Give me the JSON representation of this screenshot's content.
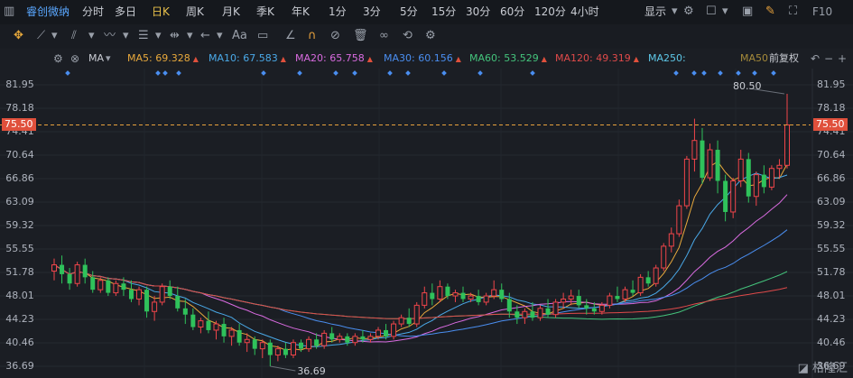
{
  "toolbar": {
    "stock_name": "睿创微纳",
    "periods": [
      "分时",
      "多日",
      "日K",
      "周K",
      "月K",
      "季K",
      "年K",
      "1分",
      "3分",
      "5分",
      "15分",
      "30分",
      "60分",
      "120分",
      "4小时"
    ],
    "active_period": "日K",
    "display_label": "显示",
    "f10_label": "F10"
  },
  "ma_bar": {
    "prefix": "MA",
    "items": [
      {
        "label": "MA5: 69.328",
        "color": "#e8a93c"
      },
      {
        "label": "MA10: 67.583",
        "color": "#4aa9e8"
      },
      {
        "label": "MA20: 65.758",
        "color": "#d96be0"
      },
      {
        "label": "MA30: 60.156",
        "color": "#4a8ef0"
      },
      {
        "label": "MA60: 53.529",
        "color": "#44c47c"
      },
      {
        "label": "MA120: 49.319",
        "color": "#e04a4a"
      },
      {
        "label": "MA250:",
        "color": "#5ec8e8"
      },
      {
        "label": "MA50",
        "color": "#a58a3a"
      }
    ],
    "adjust_label": "前复权"
  },
  "chart_data": {
    "type": "candlestick",
    "y_ticks": [
      "81.95",
      "78.18",
      "74.41",
      "70.64",
      "66.86",
      "63.09",
      "59.32",
      "55.55",
      "51.78",
      "48.01",
      "44.23",
      "40.46",
      "36.69"
    ],
    "ylim": [
      36.69,
      81.95
    ],
    "current_price": "75.50",
    "high_label": "80.50",
    "low_label": "36.69",
    "candles": [
      {
        "o": 52.0,
        "h": 54.0,
        "c": 53.0,
        "l": 50.5
      },
      {
        "o": 53.0,
        "h": 54.5,
        "c": 51.5,
        "l": 50.0
      },
      {
        "o": 51.5,
        "h": 52.5,
        "c": 50.0,
        "l": 49.0
      },
      {
        "o": 50.0,
        "h": 53.5,
        "c": 53.0,
        "l": 49.5
      },
      {
        "o": 53.0,
        "h": 54.0,
        "c": 51.0,
        "l": 50.0
      },
      {
        "o": 51.0,
        "h": 52.0,
        "c": 49.0,
        "l": 48.5
      },
      {
        "o": 49.0,
        "h": 51.0,
        "c": 50.5,
        "l": 48.5
      },
      {
        "o": 50.5,
        "h": 51.0,
        "c": 48.5,
        "l": 48.0
      },
      {
        "o": 48.5,
        "h": 50.5,
        "c": 50.0,
        "l": 48.0
      },
      {
        "o": 50.0,
        "h": 51.0,
        "c": 49.0,
        "l": 48.0
      },
      {
        "o": 49.0,
        "h": 50.5,
        "c": 47.5,
        "l": 47.0
      },
      {
        "o": 47.5,
        "h": 49.5,
        "c": 49.0,
        "l": 46.5
      },
      {
        "o": 49.0,
        "h": 49.5,
        "c": 45.5,
        "l": 44.5
      },
      {
        "o": 45.5,
        "h": 48.0,
        "c": 47.0,
        "l": 44.0
      },
      {
        "o": 47.0,
        "h": 50.0,
        "c": 49.5,
        "l": 46.5
      },
      {
        "o": 49.5,
        "h": 50.5,
        "c": 48.0,
        "l": 47.5
      },
      {
        "o": 48.0,
        "h": 49.5,
        "c": 46.0,
        "l": 45.5
      },
      {
        "o": 46.0,
        "h": 47.5,
        "c": 45.0,
        "l": 43.5
      },
      {
        "o": 45.0,
        "h": 46.0,
        "c": 43.0,
        "l": 42.5
      },
      {
        "o": 43.0,
        "h": 44.5,
        "c": 44.0,
        "l": 42.0
      },
      {
        "o": 44.0,
        "h": 45.5,
        "c": 42.5,
        "l": 42.0
      },
      {
        "o": 42.5,
        "h": 44.0,
        "c": 43.5,
        "l": 41.0
      },
      {
        "o": 43.5,
        "h": 44.5,
        "c": 41.5,
        "l": 40.5
      },
      {
        "o": 41.5,
        "h": 43.0,
        "c": 42.5,
        "l": 40.0
      },
      {
        "o": 42.5,
        "h": 43.5,
        "c": 40.5,
        "l": 40.0
      },
      {
        "o": 40.5,
        "h": 42.0,
        "c": 41.0,
        "l": 39.0
      },
      {
        "o": 41.0,
        "h": 41.5,
        "c": 39.5,
        "l": 38.5
      },
      {
        "o": 39.5,
        "h": 41.0,
        "c": 40.5,
        "l": 38.0
      },
      {
        "o": 40.5,
        "h": 41.0,
        "c": 38.5,
        "l": 36.69
      },
      {
        "o": 38.5,
        "h": 40.0,
        "c": 39.5,
        "l": 37.5
      },
      {
        "o": 39.5,
        "h": 40.5,
        "c": 38.5,
        "l": 38.0
      },
      {
        "o": 38.5,
        "h": 41.0,
        "c": 40.5,
        "l": 38.0
      },
      {
        "o": 40.5,
        "h": 41.0,
        "c": 39.5,
        "l": 39.0
      },
      {
        "o": 39.5,
        "h": 41.5,
        "c": 41.0,
        "l": 39.0
      },
      {
        "o": 41.0,
        "h": 42.0,
        "c": 40.0,
        "l": 39.5
      },
      {
        "o": 40.0,
        "h": 42.5,
        "c": 42.0,
        "l": 39.5
      },
      {
        "o": 42.0,
        "h": 43.0,
        "c": 41.0,
        "l": 40.5
      },
      {
        "o": 41.0,
        "h": 42.0,
        "c": 41.5,
        "l": 40.5
      },
      {
        "o": 41.5,
        "h": 42.0,
        "c": 40.5,
        "l": 40.0
      },
      {
        "o": 40.5,
        "h": 42.0,
        "c": 41.5,
        "l": 40.0
      },
      {
        "o": 41.5,
        "h": 42.5,
        "c": 41.0,
        "l": 40.5
      },
      {
        "o": 41.0,
        "h": 42.0,
        "c": 41.5,
        "l": 40.5
      },
      {
        "o": 41.5,
        "h": 43.0,
        "c": 42.5,
        "l": 41.0
      },
      {
        "o": 42.5,
        "h": 43.5,
        "c": 41.5,
        "l": 41.0
      },
      {
        "o": 41.5,
        "h": 44.0,
        "c": 43.5,
        "l": 41.0
      },
      {
        "o": 43.5,
        "h": 45.0,
        "c": 44.5,
        "l": 43.0
      },
      {
        "o": 44.5,
        "h": 46.0,
        "c": 43.5,
        "l": 43.0
      },
      {
        "o": 43.5,
        "h": 47.0,
        "c": 46.5,
        "l": 43.0
      },
      {
        "o": 46.5,
        "h": 49.5,
        "c": 48.5,
        "l": 46.0
      },
      {
        "o": 48.5,
        "h": 50.0,
        "c": 47.5,
        "l": 46.5
      },
      {
        "o": 47.5,
        "h": 50.5,
        "c": 49.5,
        "l": 47.0
      },
      {
        "o": 49.5,
        "h": 50.0,
        "c": 48.0,
        "l": 47.5
      },
      {
        "o": 48.0,
        "h": 49.0,
        "c": 48.5,
        "l": 47.0
      },
      {
        "o": 48.5,
        "h": 49.5,
        "c": 47.5,
        "l": 47.0
      },
      {
        "o": 47.5,
        "h": 48.5,
        "c": 48.0,
        "l": 47.0
      },
      {
        "o": 48.0,
        "h": 49.0,
        "c": 47.0,
        "l": 46.5
      },
      {
        "o": 47.0,
        "h": 48.5,
        "c": 48.0,
        "l": 46.5
      },
      {
        "o": 48.0,
        "h": 50.5,
        "c": 49.0,
        "l": 47.5
      },
      {
        "o": 49.0,
        "h": 50.0,
        "c": 47.5,
        "l": 47.0
      },
      {
        "o": 47.5,
        "h": 48.5,
        "c": 45.5,
        "l": 44.5
      },
      {
        "o": 45.5,
        "h": 46.5,
        "c": 44.5,
        "l": 43.5
      },
      {
        "o": 44.5,
        "h": 46.0,
        "c": 45.5,
        "l": 43.5
      },
      {
        "o": 45.5,
        "h": 47.0,
        "c": 44.5,
        "l": 44.0
      },
      {
        "o": 44.5,
        "h": 46.5,
        "c": 46.0,
        "l": 44.0
      },
      {
        "o": 46.0,
        "h": 47.5,
        "c": 45.0,
        "l": 44.5
      },
      {
        "o": 45.0,
        "h": 47.5,
        "c": 47.0,
        "l": 44.5
      },
      {
        "o": 47.0,
        "h": 48.5,
        "c": 47.5,
        "l": 46.0
      },
      {
        "o": 47.5,
        "h": 49.0,
        "c": 48.0,
        "l": 46.5
      },
      {
        "o": 48.0,
        "h": 49.0,
        "c": 46.5,
        "l": 46.0
      },
      {
        "o": 46.5,
        "h": 47.5,
        "c": 46.0,
        "l": 45.0
      },
      {
        "o": 46.0,
        "h": 47.0,
        "c": 45.5,
        "l": 45.0
      },
      {
        "o": 45.5,
        "h": 47.0,
        "c": 46.5,
        "l": 45.0
      },
      {
        "o": 46.5,
        "h": 48.5,
        "c": 48.0,
        "l": 46.0
      },
      {
        "o": 48.0,
        "h": 49.5,
        "c": 47.5,
        "l": 47.0
      },
      {
        "o": 47.5,
        "h": 49.5,
        "c": 49.0,
        "l": 47.0
      },
      {
        "o": 49.0,
        "h": 50.5,
        "c": 48.5,
        "l": 48.0
      },
      {
        "o": 48.5,
        "h": 51.5,
        "c": 51.0,
        "l": 48.0
      },
      {
        "o": 51.0,
        "h": 52.0,
        "c": 50.0,
        "l": 49.5
      },
      {
        "o": 50.0,
        "h": 53.0,
        "c": 52.5,
        "l": 49.5
      },
      {
        "o": 52.5,
        "h": 56.5,
        "c": 56.0,
        "l": 52.0
      },
      {
        "o": 56.0,
        "h": 59.0,
        "c": 58.0,
        "l": 55.0
      },
      {
        "o": 58.0,
        "h": 63.5,
        "c": 62.5,
        "l": 57.5
      },
      {
        "o": 62.5,
        "h": 70.5,
        "c": 70.0,
        "l": 62.0
      },
      {
        "o": 70.0,
        "h": 76.5,
        "c": 73.0,
        "l": 68.0
      },
      {
        "o": 73.0,
        "h": 75.0,
        "c": 67.0,
        "l": 66.0
      },
      {
        "o": 67.0,
        "h": 72.5,
        "c": 71.5,
        "l": 66.5
      },
      {
        "o": 71.5,
        "h": 73.0,
        "c": 66.5,
        "l": 64.5
      },
      {
        "o": 66.5,
        "h": 67.5,
        "c": 61.5,
        "l": 60.0
      },
      {
        "o": 61.5,
        "h": 67.0,
        "c": 66.5,
        "l": 60.5
      },
      {
        "o": 66.5,
        "h": 71.5,
        "c": 70.0,
        "l": 65.5
      },
      {
        "o": 70.0,
        "h": 71.0,
        "c": 64.0,
        "l": 63.0
      },
      {
        "o": 64.0,
        "h": 68.0,
        "c": 67.5,
        "l": 62.5
      },
      {
        "o": 67.5,
        "h": 69.0,
        "c": 65.5,
        "l": 64.5
      },
      {
        "o": 65.5,
        "h": 69.0,
        "c": 68.5,
        "l": 65.0
      },
      {
        "o": 68.5,
        "h": 70.0,
        "c": 69.0,
        "l": 67.0
      },
      {
        "o": 69.0,
        "h": 80.5,
        "c": 75.5,
        "l": 68.5
      }
    ]
  },
  "watermark": "格隆汇"
}
